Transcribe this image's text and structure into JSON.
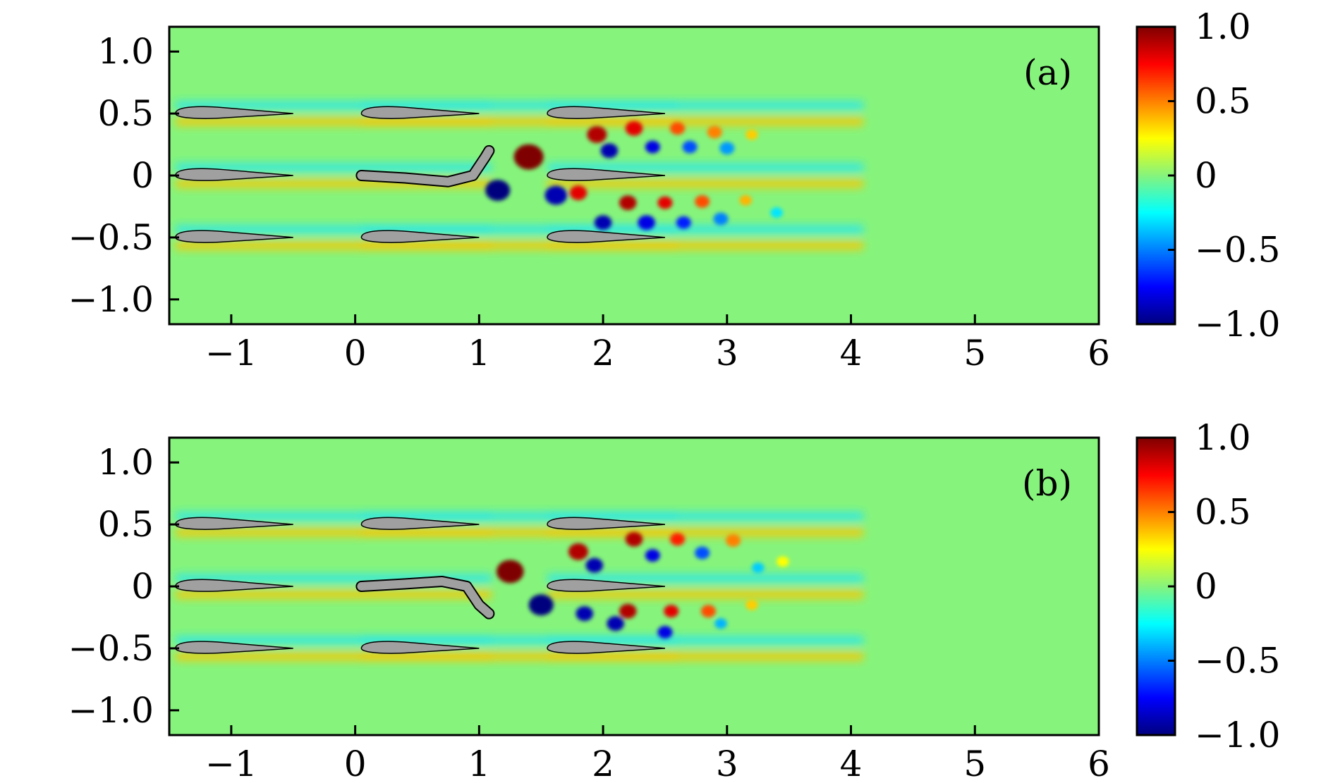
{
  "chart_data": [
    {
      "type": "heatmap",
      "panel_label": "(a)",
      "title": "",
      "xlabel": "",
      "ylabel": "",
      "xlim": [
        -1.5,
        6
      ],
      "ylim": [
        -1.2,
        1.2
      ],
      "xticks": [
        -1,
        0,
        1,
        2,
        3,
        4,
        5,
        6
      ],
      "xtick_labels": [
        "−1",
        "0",
        "1",
        "2",
        "3",
        "4",
        "5",
        "6"
      ],
      "yticks": [
        1.0,
        0.5,
        0,
        -0.5,
        -1.0
      ],
      "ytick_labels": [
        "1.0",
        "0.5",
        "0",
        "−0.5",
        "−1.0"
      ],
      "colorbar": {
        "range": [
          -1.0,
          1.0
        ],
        "ticks": [
          1.0,
          0.5,
          0,
          -0.5,
          -1.0
        ],
        "tick_labels": [
          "1.0",
          "0.5",
          "0",
          "−0.5",
          "−1.0"
        ],
        "colormap": "jet"
      },
      "background_color": "#86f47c",
      "airfoil_color": "#a0a0a0",
      "airfoils": [
        {
          "x0": -1.45,
          "chord": 0.95,
          "y": 0.5
        },
        {
          "x0": -1.45,
          "chord": 0.95,
          "y": 0.0
        },
        {
          "x0": -1.45,
          "chord": 0.95,
          "y": -0.5
        },
        {
          "x0": 0.05,
          "chord": 0.95,
          "y": 0.5
        },
        {
          "x0": 0.05,
          "chord": 0.95,
          "y": -0.5
        },
        {
          "x0": 1.55,
          "chord": 0.95,
          "y": 0.5
        },
        {
          "x0": 1.55,
          "chord": 0.0,
          "y": 0.0,
          "note": "flexible"
        },
        {
          "x0": 1.55,
          "chord": 0.95,
          "y": 0.0
        },
        {
          "x0": 1.55,
          "chord": 0.95,
          "y": -0.5
        }
      ],
      "flexible_foil": {
        "x": [
          0.05,
          0.4,
          0.75,
          0.95,
          1.05,
          1.08
        ],
        "y": [
          0.0,
          -0.02,
          -0.05,
          0.0,
          0.15,
          0.2
        ]
      },
      "vortices": [
        {
          "x": 1.4,
          "y": 0.15,
          "r": 0.12,
          "v": 1.0
        },
        {
          "x": 1.15,
          "y": -0.12,
          "r": 0.1,
          "v": -1.0
        },
        {
          "x": 1.62,
          "y": -0.16,
          "r": 0.09,
          "v": -0.9
        },
        {
          "x": 1.8,
          "y": -0.14,
          "r": 0.07,
          "v": 0.8
        },
        {
          "x": 1.95,
          "y": 0.33,
          "r": 0.08,
          "v": 0.9
        },
        {
          "x": 2.05,
          "y": 0.2,
          "r": 0.07,
          "v": -0.9
        },
        {
          "x": 2.25,
          "y": 0.38,
          "r": 0.07,
          "v": 0.8
        },
        {
          "x": 2.4,
          "y": 0.23,
          "r": 0.06,
          "v": -0.8
        },
        {
          "x": 2.6,
          "y": 0.38,
          "r": 0.06,
          "v": 0.6
        },
        {
          "x": 2.7,
          "y": 0.23,
          "r": 0.06,
          "v": -0.6
        },
        {
          "x": 2.9,
          "y": 0.35,
          "r": 0.06,
          "v": 0.5
        },
        {
          "x": 3.0,
          "y": 0.22,
          "r": 0.06,
          "v": -0.45
        },
        {
          "x": 3.2,
          "y": 0.33,
          "r": 0.05,
          "v": 0.35
        },
        {
          "x": 2.0,
          "y": -0.38,
          "r": 0.07,
          "v": -0.9
        },
        {
          "x": 2.2,
          "y": -0.22,
          "r": 0.07,
          "v": 0.9
        },
        {
          "x": 2.35,
          "y": -0.38,
          "r": 0.07,
          "v": -0.8
        },
        {
          "x": 2.5,
          "y": -0.22,
          "r": 0.06,
          "v": 0.8
        },
        {
          "x": 2.65,
          "y": -0.38,
          "r": 0.06,
          "v": -0.7
        },
        {
          "x": 2.8,
          "y": -0.21,
          "r": 0.06,
          "v": 0.6
        },
        {
          "x": 2.95,
          "y": -0.35,
          "r": 0.06,
          "v": -0.5
        },
        {
          "x": 3.15,
          "y": -0.2,
          "r": 0.05,
          "v": 0.4
        },
        {
          "x": 3.4,
          "y": -0.3,
          "r": 0.05,
          "v": -0.3
        }
      ]
    },
    {
      "type": "heatmap",
      "panel_label": "(b)",
      "title": "",
      "xlabel": "",
      "ylabel": "",
      "xlim": [
        -1.5,
        6
      ],
      "ylim": [
        -1.2,
        1.2
      ],
      "xticks": [
        -1,
        0,
        1,
        2,
        3,
        4,
        5,
        6
      ],
      "xtick_labels": [
        "−1",
        "0",
        "1",
        "2",
        "3",
        "4",
        "5",
        "6"
      ],
      "yticks": [
        1.0,
        0.5,
        0,
        -0.5,
        -1.0
      ],
      "ytick_labels": [
        "1.0",
        "0.5",
        "0",
        "−0.5",
        "−1.0"
      ],
      "colorbar": {
        "range": [
          -1.0,
          1.0
        ],
        "ticks": [
          1.0,
          0.5,
          0,
          -0.5,
          -1.0
        ],
        "tick_labels": [
          "1.0",
          "0.5",
          "0",
          "−0.5",
          "−1.0"
        ],
        "colormap": "jet"
      },
      "background_color": "#86f47c",
      "airfoil_color": "#a0a0a0",
      "airfoils": [
        {
          "x0": -1.45,
          "chord": 0.95,
          "y": 0.5
        },
        {
          "x0": -1.45,
          "chord": 0.95,
          "y": 0.0
        },
        {
          "x0": -1.45,
          "chord": 0.95,
          "y": -0.5
        },
        {
          "x0": 0.05,
          "chord": 0.95,
          "y": 0.5
        },
        {
          "x0": 0.05,
          "chord": 0.95,
          "y": -0.5
        },
        {
          "x0": 1.55,
          "chord": 0.95,
          "y": 0.5
        },
        {
          "x0": 1.55,
          "chord": 0.95,
          "y": 0.0
        },
        {
          "x0": 1.55,
          "chord": 0.95,
          "y": -0.5
        }
      ],
      "flexible_foil": {
        "x": [
          0.05,
          0.4,
          0.7,
          0.9,
          1.0,
          1.08
        ],
        "y": [
          0.0,
          0.02,
          0.04,
          0.0,
          -0.15,
          -0.22
        ]
      },
      "vortices": [
        {
          "x": 1.25,
          "y": 0.12,
          "r": 0.11,
          "v": 1.0
        },
        {
          "x": 1.5,
          "y": -0.15,
          "r": 0.1,
          "v": -1.0
        },
        {
          "x": 1.8,
          "y": 0.28,
          "r": 0.08,
          "v": 0.9
        },
        {
          "x": 1.93,
          "y": 0.17,
          "r": 0.07,
          "v": -0.9
        },
        {
          "x": 2.25,
          "y": 0.38,
          "r": 0.07,
          "v": 0.9
        },
        {
          "x": 2.4,
          "y": 0.25,
          "r": 0.06,
          "v": -0.8
        },
        {
          "x": 2.6,
          "y": 0.38,
          "r": 0.06,
          "v": 0.7
        },
        {
          "x": 2.8,
          "y": 0.27,
          "r": 0.06,
          "v": -0.6
        },
        {
          "x": 3.05,
          "y": 0.37,
          "r": 0.06,
          "v": 0.5
        },
        {
          "x": 3.25,
          "y": 0.15,
          "r": 0.05,
          "v": -0.35
        },
        {
          "x": 3.45,
          "y": 0.2,
          "r": 0.05,
          "v": 0.25
        },
        {
          "x": 1.85,
          "y": -0.22,
          "r": 0.07,
          "v": -0.9
        },
        {
          "x": 2.2,
          "y": -0.2,
          "r": 0.07,
          "v": 0.9
        },
        {
          "x": 2.1,
          "y": -0.3,
          "r": 0.07,
          "v": -0.9
        },
        {
          "x": 2.55,
          "y": -0.2,
          "r": 0.06,
          "v": 0.8
        },
        {
          "x": 2.5,
          "y": -0.37,
          "r": 0.06,
          "v": -0.8
        },
        {
          "x": 2.85,
          "y": -0.2,
          "r": 0.06,
          "v": 0.6
        },
        {
          "x": 2.95,
          "y": -0.3,
          "r": 0.05,
          "v": -0.4
        },
        {
          "x": 3.2,
          "y": -0.15,
          "r": 0.05,
          "v": 0.35
        }
      ]
    }
  ]
}
